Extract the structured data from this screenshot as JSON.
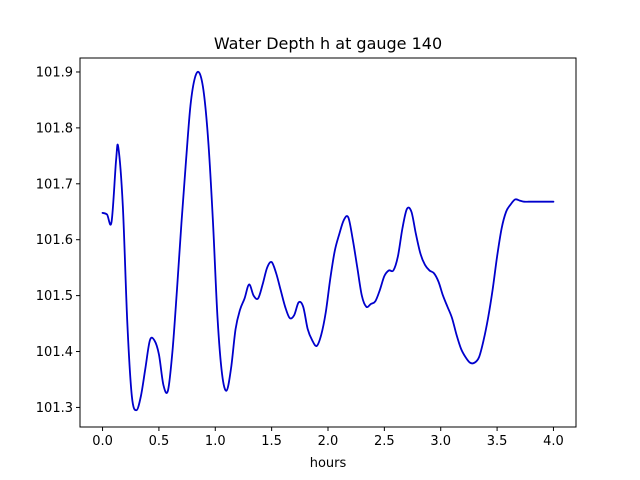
{
  "chart_data": {
    "type": "line",
    "title": "Water Depth h at gauge 140",
    "xlabel": "hours",
    "ylabel": "",
    "xlim": [
      -0.2,
      4.2
    ],
    "ylim": [
      101.265,
      101.925
    ],
    "xticks": [
      0.0,
      0.5,
      1.0,
      1.5,
      2.0,
      2.5,
      3.0,
      3.5,
      4.0
    ],
    "xtick_labels": [
      "0.0",
      "0.5",
      "1.0",
      "1.5",
      "2.0",
      "2.5",
      "3.0",
      "3.5",
      "4.0"
    ],
    "yticks": [
      101.3,
      101.4,
      101.5,
      101.6,
      101.7,
      101.8,
      101.9
    ],
    "ytick_labels": [
      "101.3",
      "101.4",
      "101.5",
      "101.6",
      "101.7",
      "101.8",
      "101.9"
    ],
    "grid": false,
    "series": [
      {
        "color": "#0000cc",
        "x": [
          0.0,
          0.04,
          0.08,
          0.12,
          0.14,
          0.18,
          0.22,
          0.26,
          0.3,
          0.34,
          0.38,
          0.42,
          0.46,
          0.5,
          0.54,
          0.58,
          0.62,
          0.66,
          0.7,
          0.74,
          0.78,
          0.82,
          0.86,
          0.9,
          0.94,
          0.98,
          1.02,
          1.06,
          1.1,
          1.14,
          1.18,
          1.22,
          1.26,
          1.3,
          1.34,
          1.38,
          1.42,
          1.46,
          1.5,
          1.54,
          1.58,
          1.62,
          1.66,
          1.7,
          1.74,
          1.78,
          1.82,
          1.86,
          1.9,
          1.94,
          1.98,
          2.02,
          2.06,
          2.1,
          2.14,
          2.18,
          2.22,
          2.26,
          2.3,
          2.34,
          2.38,
          2.42,
          2.46,
          2.5,
          2.54,
          2.58,
          2.62,
          2.66,
          2.7,
          2.74,
          2.78,
          2.82,
          2.86,
          2.9,
          2.94,
          2.98,
          3.02,
          3.06,
          3.1,
          3.14,
          3.18,
          3.22,
          3.26,
          3.3,
          3.34,
          3.38,
          3.42,
          3.46,
          3.5,
          3.54,
          3.58,
          3.62,
          3.66,
          3.7,
          3.74,
          3.78,
          3.82,
          3.86,
          3.9,
          3.94,
          3.98,
          4.0
        ],
        "y": [
          101.648,
          101.645,
          101.632,
          101.742,
          101.765,
          101.66,
          101.45,
          101.32,
          101.295,
          101.32,
          101.37,
          101.42,
          101.42,
          101.395,
          101.34,
          101.33,
          101.4,
          101.51,
          101.63,
          101.74,
          101.84,
          101.89,
          101.898,
          101.86,
          101.77,
          101.63,
          101.46,
          101.36,
          101.33,
          101.37,
          101.44,
          101.475,
          101.495,
          101.52,
          101.5,
          101.495,
          101.52,
          101.55,
          101.56,
          101.54,
          101.51,
          101.48,
          101.46,
          101.465,
          101.488,
          101.48,
          101.44,
          101.42,
          101.41,
          101.43,
          101.47,
          101.53,
          101.58,
          101.61,
          101.635,
          101.64,
          101.6,
          101.55,
          101.5,
          101.48,
          101.485,
          101.49,
          101.51,
          101.535,
          101.545,
          101.545,
          101.57,
          101.62,
          101.655,
          101.65,
          101.61,
          101.575,
          101.555,
          101.545,
          101.54,
          101.525,
          101.5,
          101.48,
          101.46,
          101.43,
          101.405,
          101.39,
          101.38,
          101.38,
          101.39,
          101.42,
          101.46,
          101.51,
          101.57,
          101.62,
          101.65,
          101.663,
          101.672,
          101.67,
          101.668,
          101.668,
          101.668,
          101.668,
          101.668,
          101.668,
          101.668,
          101.668
        ]
      }
    ]
  }
}
